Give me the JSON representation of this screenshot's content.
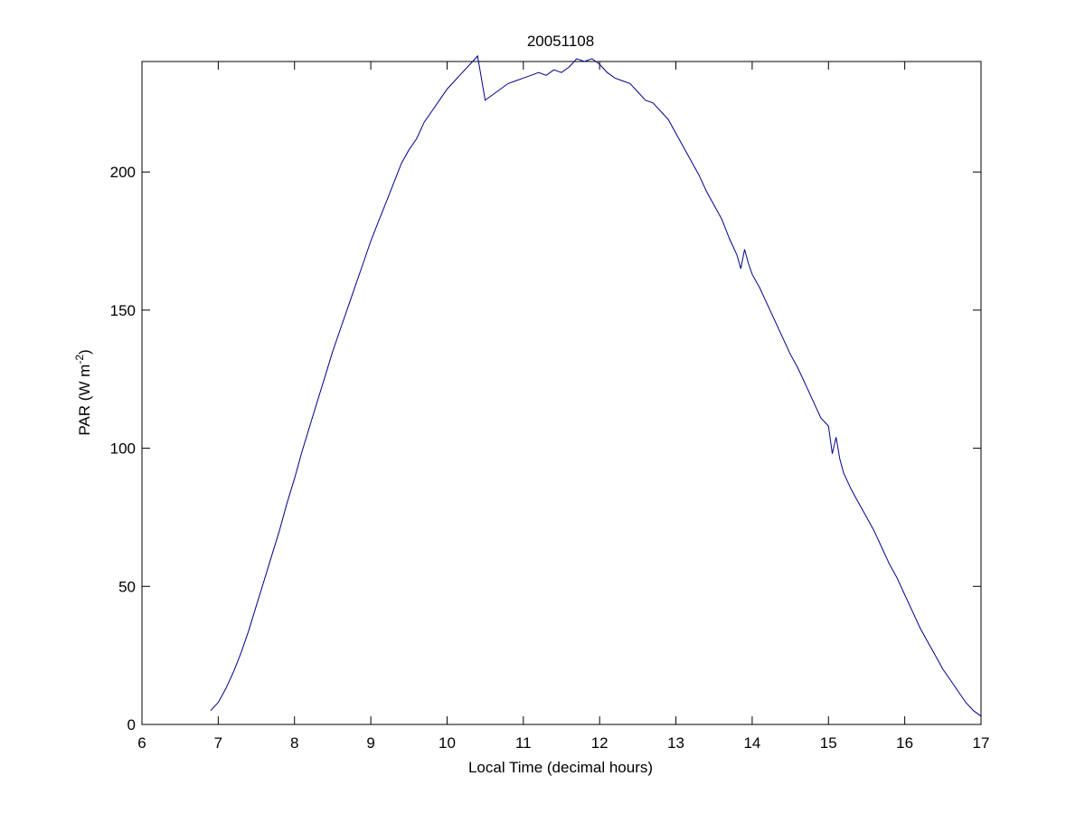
{
  "chart_data": {
    "type": "line",
    "title": "20051108",
    "xlabel": "Local Time (decimal hours)",
    "ylabel": {
      "main": "PAR (W m",
      "superscript": "-2",
      "close": ")"
    },
    "xlim": [
      6,
      17
    ],
    "ylim": [
      0,
      240
    ],
    "xticks": [
      "6",
      "7",
      "8",
      "9",
      "10",
      "11",
      "12",
      "13",
      "14",
      "15",
      "16",
      "17"
    ],
    "yticks": [
      "0",
      "50",
      "100",
      "150",
      "200"
    ],
    "grid": false,
    "box": true,
    "line_color": "#00008b",
    "series": [
      {
        "x": [
          6.9,
          7.0,
          7.1,
          7.2,
          7.3,
          7.4,
          7.5,
          7.6,
          7.7,
          7.8,
          7.9,
          8.0,
          8.1,
          8.2,
          8.3,
          8.4,
          8.5,
          8.6,
          8.7,
          8.8,
          8.9,
          9.0,
          9.1,
          9.2,
          9.3,
          9.4,
          9.5,
          9.6,
          9.7,
          9.8,
          9.9,
          10.0,
          10.1,
          10.2,
          10.3,
          10.4,
          10.5,
          10.6,
          10.7,
          10.8,
          10.9,
          11.0,
          11.1,
          11.2,
          11.3,
          11.4,
          11.5,
          11.6,
          11.7,
          11.8,
          11.9,
          12.0,
          12.1,
          12.2,
          12.3,
          12.4,
          12.5,
          12.6,
          12.7,
          12.8,
          12.9,
          13.0,
          13.1,
          13.2,
          13.3,
          13.4,
          13.5,
          13.6,
          13.7,
          13.8,
          13.85,
          13.9,
          13.95,
          14.0,
          14.1,
          14.2,
          14.3,
          14.4,
          14.5,
          14.6,
          14.7,
          14.8,
          14.9,
          15.0,
          15.05,
          15.1,
          15.15,
          15.2,
          15.3,
          15.4,
          15.5,
          15.6,
          15.7,
          15.8,
          15.9,
          16.0,
          16.1,
          16.2,
          16.3,
          16.4,
          16.5,
          16.6,
          16.7,
          16.8,
          16.9,
          17.0
        ],
        "y": [
          5,
          8,
          13,
          19,
          26,
          34,
          43,
          52,
          61,
          70,
          80,
          89,
          99,
          108,
          117,
          126,
          135,
          143,
          151,
          159,
          167,
          175,
          182,
          189,
          196,
          203,
          208,
          212,
          218,
          222,
          226,
          230,
          233,
          236,
          239,
          242,
          226,
          228,
          230,
          232,
          233,
          234,
          235,
          236,
          235,
          237,
          236,
          238,
          241,
          240,
          241,
          239,
          236,
          234,
          233,
          232,
          229,
          226,
          225,
          222,
          219,
          214,
          209,
          204,
          199,
          193,
          188,
          183,
          176,
          170,
          165,
          172,
          167,
          163,
          158,
          152,
          146,
          140,
          134,
          129,
          123,
          117,
          111,
          108,
          98,
          104,
          96,
          91,
          85,
          80,
          75,
          70,
          64,
          58,
          53,
          47,
          41,
          35,
          30,
          25,
          20,
          16,
          12,
          8,
          5,
          3
        ]
      }
    ]
  }
}
